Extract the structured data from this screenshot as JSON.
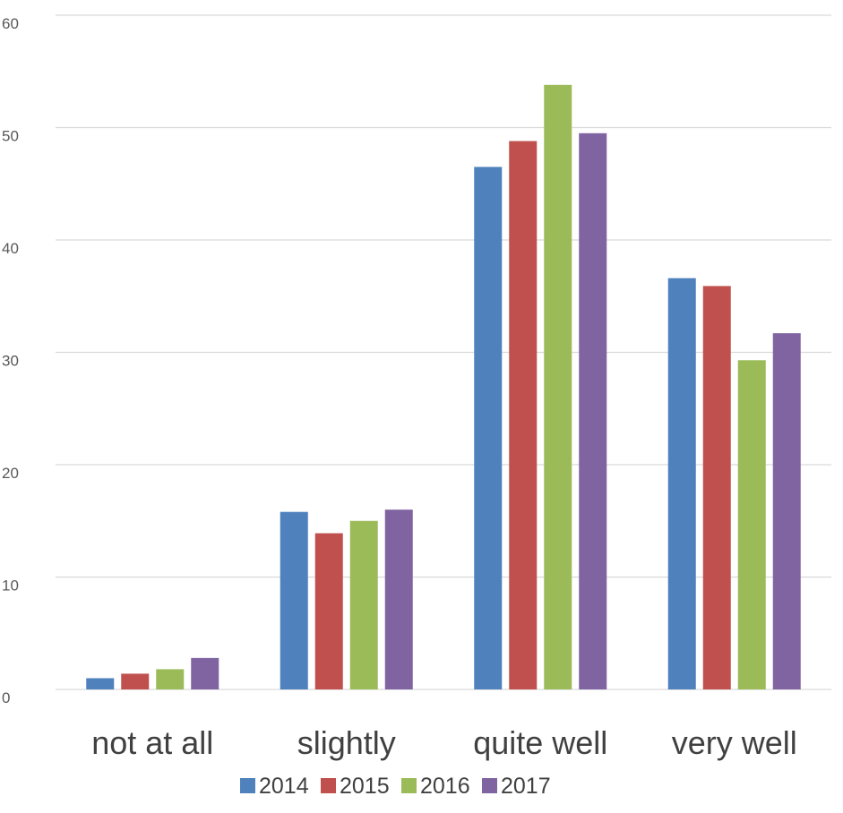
{
  "chart_data": {
    "type": "bar",
    "categories": [
      "not at all",
      "slightly",
      "quite well",
      "very well"
    ],
    "series": [
      {
        "name": "2014",
        "color": "#4f81bd",
        "values": [
          1.0,
          15.8,
          46.5,
          36.6
        ]
      },
      {
        "name": "2015",
        "color": "#c0504d",
        "values": [
          1.4,
          13.9,
          48.8,
          35.9
        ]
      },
      {
        "name": "2016",
        "color": "#9bbb59",
        "values": [
          1.8,
          15.0,
          53.8,
          29.3
        ]
      },
      {
        "name": "2017",
        "color": "#8064a2",
        "values": [
          2.8,
          16.0,
          49.5,
          31.7
        ]
      }
    ],
    "y_ticks": [
      "0",
      "10",
      "20",
      "30",
      "40",
      "50",
      "60"
    ],
    "ylim": [
      0,
      60
    ],
    "grid": true,
    "legend_position": "bottom",
    "title": "",
    "xlabel": "",
    "ylabel": ""
  }
}
